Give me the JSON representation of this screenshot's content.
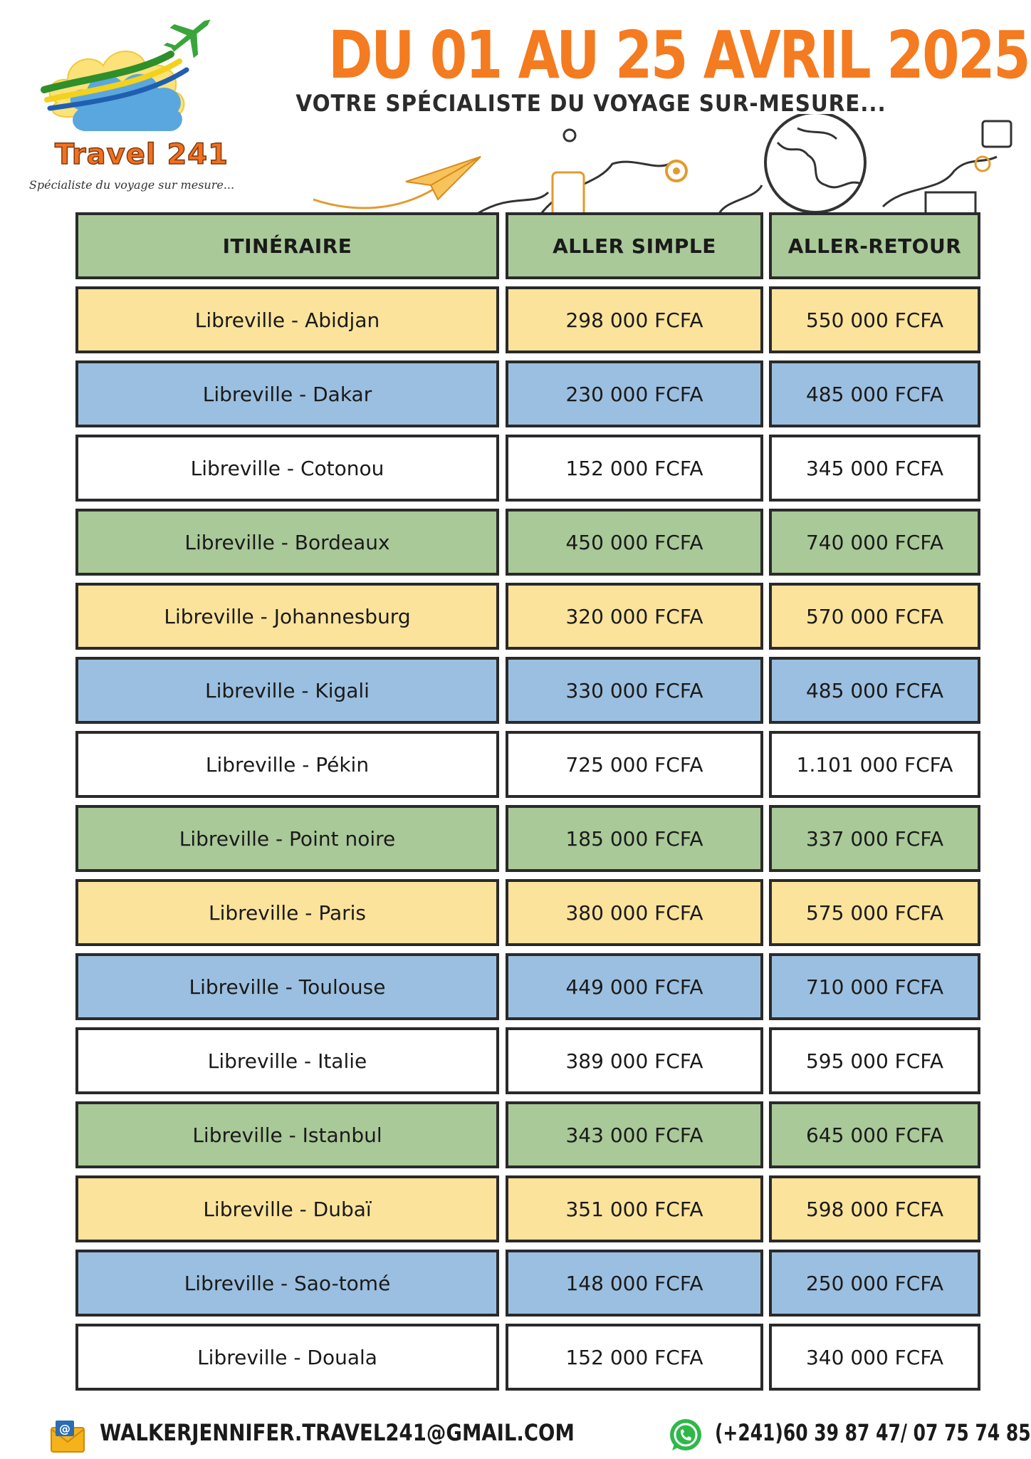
{
  "header": {
    "brand": "Travel 241",
    "tagline": "Spécialiste du voyage sur mesure...",
    "title": "DU 01 AU 25  AVRIL 2025",
    "subtitle": "VOTRE SPÉCIALISTE DU VOYAGE SUR-MESURE..."
  },
  "colors": {
    "title_orange": "#f47b20",
    "green": "#a9c998",
    "yellow": "#fbe39b",
    "blue": "#9bbfe0",
    "white": "#ffffff",
    "border": "#2a2a2a"
  },
  "table": {
    "columns": [
      "ITINÉRAIRE",
      "ALLER SIMPLE",
      "ALLER-RETOUR"
    ],
    "rows": [
      {
        "route": "Libreville - Abidjan",
        "one_way": "298 000 FCFA",
        "round_trip": "550 000 FCFA",
        "color": "yellow"
      },
      {
        "route": "Libreville - Dakar",
        "one_way": "230 000 FCFA",
        "round_trip": "485 000 FCFA",
        "color": "blue"
      },
      {
        "route": "Libreville - Cotonou",
        "one_way": "152 000 FCFA",
        "round_trip": "345 000 FCFA",
        "color": "white"
      },
      {
        "route": "Libreville - Bordeaux",
        "one_way": "450 000 FCFA",
        "round_trip": "740 000 FCFA",
        "color": "green"
      },
      {
        "route": "Libreville - Johannesburg",
        "one_way": "320 000 FCFA",
        "round_trip": "570 000 FCFA",
        "color": "yellow"
      },
      {
        "route": "Libreville - Kigali",
        "one_way": "330 000 FCFA",
        "round_trip": "485 000 FCFA",
        "color": "blue"
      },
      {
        "route": "Libreville - Pékin",
        "one_way": "725 000 FCFA",
        "round_trip": "1.101 000 FCFA",
        "color": "white"
      },
      {
        "route": "Libreville - Point noire",
        "one_way": "185 000 FCFA",
        "round_trip": "337 000 FCFA",
        "color": "green"
      },
      {
        "route": "Libreville - Paris",
        "one_way": "380 000 FCFA",
        "round_trip": "575 000 FCFA",
        "color": "yellow"
      },
      {
        "route": "Libreville - Toulouse",
        "one_way": "449 000 FCFA",
        "round_trip": "710 000 FCFA",
        "color": "blue"
      },
      {
        "route": "Libreville - Italie",
        "one_way": "389 000 FCFA",
        "round_trip": "595 000 FCFA",
        "color": "white"
      },
      {
        "route": "Libreville - Istanbul",
        "one_way": "343 000 FCFA",
        "round_trip": "645 000 FCFA",
        "color": "green"
      },
      {
        "route": "Libreville - Dubaï",
        "one_way": "351 000 FCFA",
        "round_trip": "598 000 FCFA",
        "color": "yellow"
      },
      {
        "route": "Libreville - Sao-tomé",
        "one_way": "148 000 FCFA",
        "round_trip": "250 000 FCFA",
        "color": "blue"
      },
      {
        "route": "Libreville - Douala",
        "one_way": "152 000 FCFA",
        "round_trip": "340 000 FCFA",
        "color": "white"
      }
    ]
  },
  "footer": {
    "email": "WALKERJENNIFER.TRAVEL241@GMAIL.COM",
    "phone": "(+241)60 39 87 47/ 07 75 74 85",
    "email_icon": "email-icon",
    "phone_icon": "whatsapp-icon"
  }
}
